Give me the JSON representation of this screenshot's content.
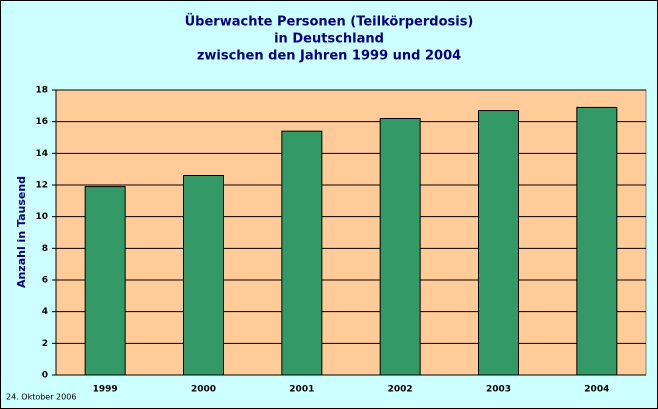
{
  "chart_data": {
    "type": "bar",
    "title": [
      "Überwachte Personen (Teilkörperdosis)",
      "in Deutschland",
      "zwischen den Jahren 1999 und 2004"
    ],
    "y_label": "Anzahl in Tausend",
    "note": "24. Oktober 2006",
    "categories": [
      "1999",
      "2000",
      "2001",
      "2002",
      "2003",
      "2004"
    ],
    "values": [
      11.9,
      12.6,
      15.4,
      16.2,
      16.7,
      16.9
    ],
    "color": "#339966",
    "ylim": [
      0,
      18
    ],
    "yticks": [
      0,
      2,
      4,
      6,
      8,
      10,
      12,
      14,
      16,
      18
    ],
    "grid": true
  }
}
